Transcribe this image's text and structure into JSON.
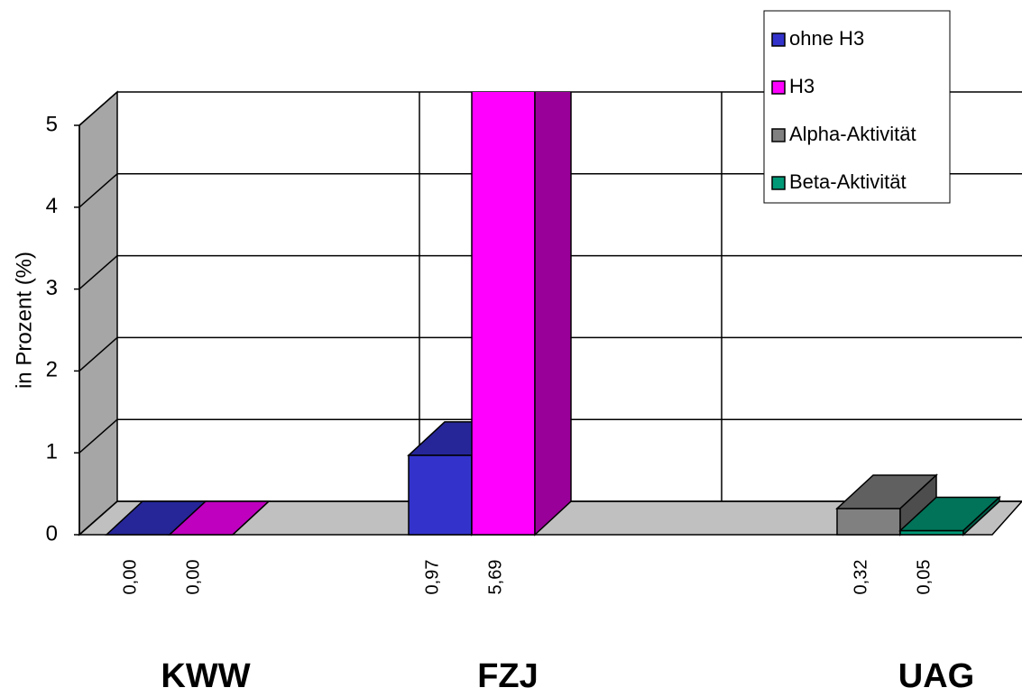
{
  "chart_data": {
    "type": "bar3d",
    "y_label": "in Prozent (%)",
    "categories": [
      "KWW",
      "FZJ",
      "UAG"
    ],
    "series": [
      {
        "name": "ohne H3",
        "color": "#3333cc",
        "values": [
          0,
          0.97,
          null
        ],
        "value_labels": [
          "0,00",
          "0,97",
          null
        ]
      },
      {
        "name": "H3",
        "color": "#ff00ff",
        "values": [
          0,
          5.69,
          null
        ],
        "value_labels": [
          "0,00",
          "5,69",
          null
        ]
      },
      {
        "name": "Alpha-Aktivität",
        "color": "#808080",
        "values": [
          null,
          null,
          0.32
        ],
        "value_labels": [
          null,
          null,
          "0,32"
        ]
      },
      {
        "name": "Beta-Aktivität",
        "color": "#009977",
        "values": [
          null,
          null,
          0.05
        ],
        "value_labels": [
          null,
          null,
          "0,05"
        ]
      }
    ],
    "ylim": [
      0,
      5
    ],
    "yticks": [
      0,
      1,
      2,
      3,
      4,
      5
    ],
    "grid": true,
    "legend": "top-right"
  }
}
